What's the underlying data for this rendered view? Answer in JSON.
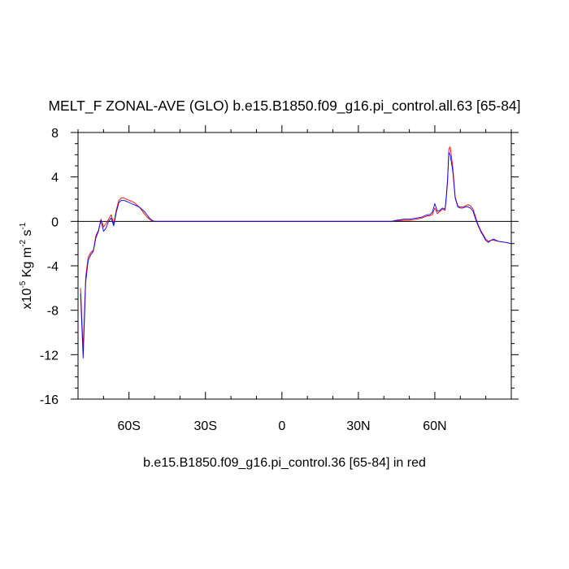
{
  "chart_data": {
    "type": "line",
    "title": "MELT_F ZONAL-AVE (GLO) b.e15.B1850.f09_g16.pi_control.all.63 [65-84]",
    "xlabel": "b.e15.B1850.f09_g16.pi_control.36 [65-84] in red",
    "ylabel": {
      "prefix": "x10",
      "exp": "-5",
      "unit1": " Kg m",
      "exp2": "-2",
      "unit2": " s",
      "exp3": "-1"
    },
    "xlim": [
      -80,
      90
    ],
    "ylim": [
      -16,
      8
    ],
    "x_ticks": [
      {
        "value": -60,
        "label": "60S"
      },
      {
        "value": -30,
        "label": "30S"
      },
      {
        "value": 0,
        "label": "0"
      },
      {
        "value": 30,
        "label": "30N"
      },
      {
        "value": 60,
        "label": "60N"
      }
    ],
    "y_ticks": [
      {
        "value": 8,
        "label": "8"
      },
      {
        "value": 4,
        "label": "4"
      },
      {
        "value": 0,
        "label": "0"
      },
      {
        "value": -4,
        "label": "-4"
      },
      {
        "value": -8,
        "label": "-8"
      },
      {
        "value": -12,
        "label": "-12"
      },
      {
        "value": -16,
        "label": "-16"
      }
    ],
    "zero_line": true,
    "series": [
      {
        "color": "#ff0000",
        "x": [
          -79,
          -78,
          -77,
          -76,
          -75,
          -74,
          -73,
          -72,
          -71,
          -70,
          -69,
          -68,
          -67,
          -66,
          -65,
          -64,
          -63,
          -62,
          -61,
          -60,
          -59,
          -58,
          -57,
          -56,
          -55,
          -54,
          -53,
          -52,
          -51,
          -50,
          -48,
          -45,
          -40,
          -20,
          0,
          20,
          40,
          43,
          45,
          48,
          50,
          53,
          55,
          57,
          58,
          59,
          60,
          61,
          62,
          63,
          64,
          64.5,
          65,
          65.5,
          66,
          67,
          68,
          69,
          70,
          71,
          72,
          73,
          74,
          75,
          76,
          77,
          78,
          79,
          80,
          81,
          82,
          83,
          85,
          88,
          90
        ],
        "y": [
          -6,
          -11.5,
          -5,
          -3.2,
          -2.8,
          -2.6,
          -1.3,
          -0.8,
          0.2,
          -0.5,
          -0.2,
          0.2,
          0.6,
          -0.2,
          1.0,
          1.9,
          2.1,
          2.1,
          2.0,
          1.9,
          1.8,
          1.7,
          1.5,
          1.3,
          1.0,
          0.7,
          0.4,
          0.2,
          0.05,
          0.0,
          0.0,
          0.0,
          0.0,
          0.0,
          0.0,
          0.0,
          0.0,
          0.0,
          0.05,
          0.1,
          0.1,
          0.2,
          0.3,
          0.5,
          0.5,
          0.6,
          1.2,
          0.7,
          0.9,
          1.1,
          1.0,
          2.0,
          3.5,
          6.5,
          6.7,
          5.0,
          2.2,
          1.4,
          1.3,
          1.3,
          1.4,
          1.5,
          1.4,
          1.1,
          0.4,
          -0.3,
          -0.8,
          -1.2,
          -1.6,
          -1.8,
          -1.7,
          -1.7,
          -1.8,
          -1.9,
          -2.0
        ]
      },
      {
        "color": "#0000ff",
        "x": [
          -79,
          -78,
          -77,
          -76,
          -75,
          -74,
          -73,
          -72,
          -71,
          -70,
          -69,
          -68,
          -67,
          -66,
          -65,
          -64,
          -63,
          -62,
          -61,
          -60,
          -59,
          -58,
          -57,
          -56,
          -55,
          -54,
          -53,
          -52,
          -51,
          -50,
          -48,
          -45,
          -40,
          -20,
          0,
          20,
          40,
          43,
          45,
          48,
          50,
          53,
          55,
          57,
          58,
          59,
          60,
          61,
          62,
          63,
          64,
          64.5,
          65,
          65.5,
          66,
          67,
          68,
          69,
          70,
          71,
          72,
          73,
          74,
          75,
          76,
          77,
          78,
          79,
          80,
          81,
          82,
          83,
          85,
          88,
          90
        ],
        "y": [
          -6.5,
          -12.3,
          -5.5,
          -3.5,
          -3.0,
          -2.7,
          -1.5,
          -0.9,
          0.1,
          -0.9,
          -0.6,
          0.0,
          0.3,
          -0.4,
          0.8,
          1.7,
          1.9,
          1.9,
          1.8,
          1.7,
          1.6,
          1.5,
          1.4,
          1.3,
          1.1,
          0.9,
          0.6,
          0.3,
          0.1,
          0.0,
          0.0,
          0.0,
          0.0,
          0.0,
          0.0,
          0.0,
          0.0,
          0.0,
          0.1,
          0.2,
          0.2,
          0.3,
          0.4,
          0.6,
          0.6,
          0.8,
          1.6,
          0.9,
          1.0,
          1.2,
          1.1,
          2.2,
          3.8,
          6.2,
          6.0,
          4.6,
          2.1,
          1.3,
          1.2,
          1.2,
          1.3,
          1.3,
          1.2,
          0.9,
          0.2,
          -0.4,
          -0.9,
          -1.3,
          -1.7,
          -1.9,
          -1.7,
          -1.6,
          -1.8,
          -1.9,
          -2.0
        ]
      }
    ]
  }
}
